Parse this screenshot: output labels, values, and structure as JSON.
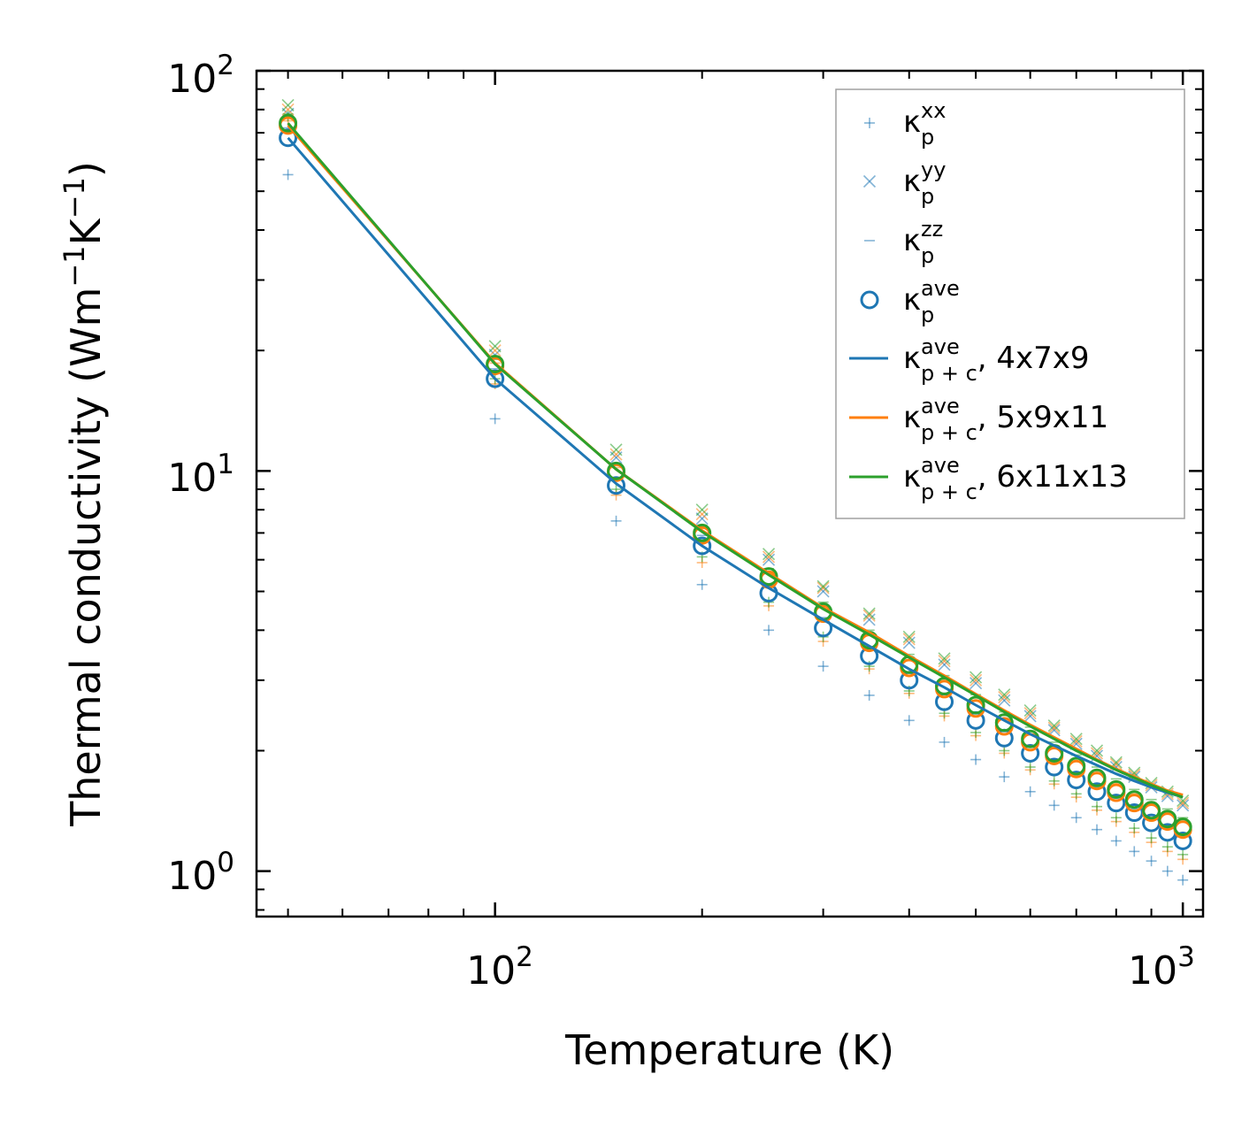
{
  "chart_data": {
    "type": "scatter",
    "title": "",
    "xlabel": "Temperature (K)",
    "ylabel": {
      "main": "Thermal conductivity (Wm",
      "exp1": "−1",
      "mid": "K",
      "exp2": "−1",
      "end": ")"
    },
    "xscale": "log",
    "yscale": "log",
    "xlim": [
      45,
      1070
    ],
    "ylim": [
      0.77,
      100
    ],
    "x_ticks": [
      {
        "value": 100,
        "base": "10",
        "exp": "2"
      },
      {
        "value": 1000,
        "base": "10",
        "exp": "3"
      }
    ],
    "y_ticks": [
      {
        "value": 1,
        "base": "10",
        "exp": "0"
      },
      {
        "value": 10,
        "base": "10",
        "exp": "1"
      },
      {
        "value": 100,
        "base": "10",
        "exp": "2"
      }
    ],
    "grid": false,
    "legend_position": "top-right",
    "temperatures": [
      50,
      100,
      150,
      200,
      250,
      300,
      350,
      400,
      450,
      500,
      550,
      600,
      650,
      700,
      750,
      800,
      850,
      900,
      950,
      1000
    ],
    "legend": [
      {
        "symbol": "plus",
        "sym": "κ",
        "sub": "p",
        "sup": "xx",
        "suffix": ""
      },
      {
        "symbol": "cross",
        "sym": "κ",
        "sub": "p",
        "sup": "yy",
        "suffix": ""
      },
      {
        "symbol": "dash",
        "sym": "κ",
        "sub": "p",
        "sup": "zz",
        "suffix": ""
      },
      {
        "symbol": "circle",
        "sym": "κ",
        "sub": "p",
        "sup": "ave",
        "suffix": ""
      },
      {
        "symbol": "line-blue",
        "sym": "κ",
        "sub": "p + c",
        "sup": "ave",
        "suffix": ", 4x7x9"
      },
      {
        "symbol": "line-orange",
        "sym": "κ",
        "sub": "p + c",
        "sup": "ave",
        "suffix": ", 5x9x11"
      },
      {
        "symbol": "line-green",
        "sym": "κ",
        "sub": "p + c",
        "sup": "ave",
        "suffix": ", 6x11x13"
      }
    ],
    "series": [
      {
        "name": "4x7x9",
        "color": "#1f77b4",
        "kappa_xx": [
          55,
          13.5,
          7.5,
          5.2,
          4.0,
          3.25,
          2.75,
          2.38,
          2.1,
          1.9,
          1.72,
          1.58,
          1.46,
          1.36,
          1.27,
          1.19,
          1.12,
          1.06,
          1.0,
          0.95
        ],
        "kappa_yy": [
          78,
          19.5,
          10.8,
          7.6,
          6.0,
          5.0,
          4.25,
          3.72,
          3.28,
          2.95,
          2.67,
          2.44,
          2.25,
          2.08,
          1.94,
          1.82,
          1.72,
          1.62,
          1.54,
          1.46
        ],
        "kappa_zz": [
          72,
          18.0,
          9.5,
          6.9,
          5.2,
          4.3,
          3.6,
          3.12,
          2.76,
          2.47,
          2.23,
          2.04,
          1.88,
          1.74,
          1.62,
          1.52,
          1.43,
          1.35,
          1.28,
          1.22
        ],
        "kappa_ave": [
          68,
          17.0,
          9.2,
          6.5,
          4.95,
          4.05,
          3.45,
          3.0,
          2.65,
          2.38,
          2.15,
          1.97,
          1.82,
          1.69,
          1.58,
          1.48,
          1.4,
          1.32,
          1.25,
          1.19
        ],
        "kappa_p_plus_c": [
          68,
          17.0,
          9.3,
          6.5,
          5.1,
          4.25,
          3.65,
          3.2,
          2.88,
          2.6,
          2.38,
          2.2,
          2.06,
          1.94,
          1.84,
          1.75,
          1.68,
          1.62,
          1.57,
          1.53
        ]
      },
      {
        "name": "5x9x11",
        "color": "#ff7f0e",
        "kappa_xx": [
          75,
          16.5,
          8.7,
          5.9,
          4.6,
          3.75,
          3.2,
          2.78,
          2.44,
          2.18,
          1.97,
          1.79,
          1.65,
          1.53,
          1.42,
          1.33,
          1.25,
          1.18,
          1.12,
          1.07
        ],
        "kappa_yy": [
          80,
          20.0,
          11.0,
          7.8,
          6.1,
          5.1,
          4.35,
          3.8,
          3.35,
          3.0,
          2.72,
          2.48,
          2.28,
          2.11,
          1.97,
          1.85,
          1.74,
          1.64,
          1.56,
          1.48
        ],
        "kappa_zz": [
          76,
          18.6,
          10.2,
          7.2,
          5.6,
          4.6,
          3.92,
          3.42,
          3.02,
          2.71,
          2.45,
          2.24,
          2.06,
          1.91,
          1.78,
          1.66,
          1.56,
          1.48,
          1.4,
          1.33
        ],
        "kappa_ave": [
          73,
          18.3,
          9.9,
          6.9,
          5.35,
          4.4,
          3.72,
          3.22,
          2.85,
          2.55,
          2.3,
          2.1,
          1.94,
          1.8,
          1.68,
          1.57,
          1.48,
          1.4,
          1.33,
          1.27
        ],
        "kappa_p_plus_c": [
          73,
          18.6,
          10.1,
          7.1,
          5.55,
          4.55,
          3.95,
          3.45,
          3.08,
          2.77,
          2.52,
          2.32,
          2.16,
          2.02,
          1.9,
          1.8,
          1.72,
          1.65,
          1.59,
          1.55
        ]
      },
      {
        "name": "6x11x13",
        "color": "#2ca02c",
        "kappa_xx": [
          77,
          17.0,
          9.0,
          6.1,
          4.7,
          3.85,
          3.25,
          2.82,
          2.48,
          2.22,
          2.0,
          1.82,
          1.68,
          1.56,
          1.45,
          1.36,
          1.28,
          1.21,
          1.15,
          1.1
        ],
        "kappa_yy": [
          82,
          20.5,
          11.3,
          8.0,
          6.2,
          5.15,
          4.4,
          3.85,
          3.4,
          3.05,
          2.76,
          2.52,
          2.31,
          2.14,
          2.0,
          1.87,
          1.76,
          1.66,
          1.58,
          1.5
        ],
        "kappa_zz": [
          78,
          19.0,
          10.4,
          7.3,
          5.7,
          4.7,
          4.0,
          3.48,
          3.08,
          2.76,
          2.5,
          2.29,
          2.1,
          1.95,
          1.82,
          1.7,
          1.6,
          1.51,
          1.43,
          1.36
        ],
        "kappa_ave": [
          74,
          18.5,
          10.0,
          7.0,
          5.45,
          4.45,
          3.78,
          3.28,
          2.9,
          2.6,
          2.35,
          2.14,
          1.97,
          1.83,
          1.71,
          1.6,
          1.51,
          1.42,
          1.35,
          1.29
        ],
        "kappa_p_plus_c": [
          74,
          18.5,
          10.1,
          7.05,
          5.5,
          4.52,
          3.9,
          3.42,
          3.05,
          2.75,
          2.5,
          2.3,
          2.14,
          2.0,
          1.89,
          1.79,
          1.71,
          1.64,
          1.58,
          1.53
        ]
      }
    ]
  }
}
